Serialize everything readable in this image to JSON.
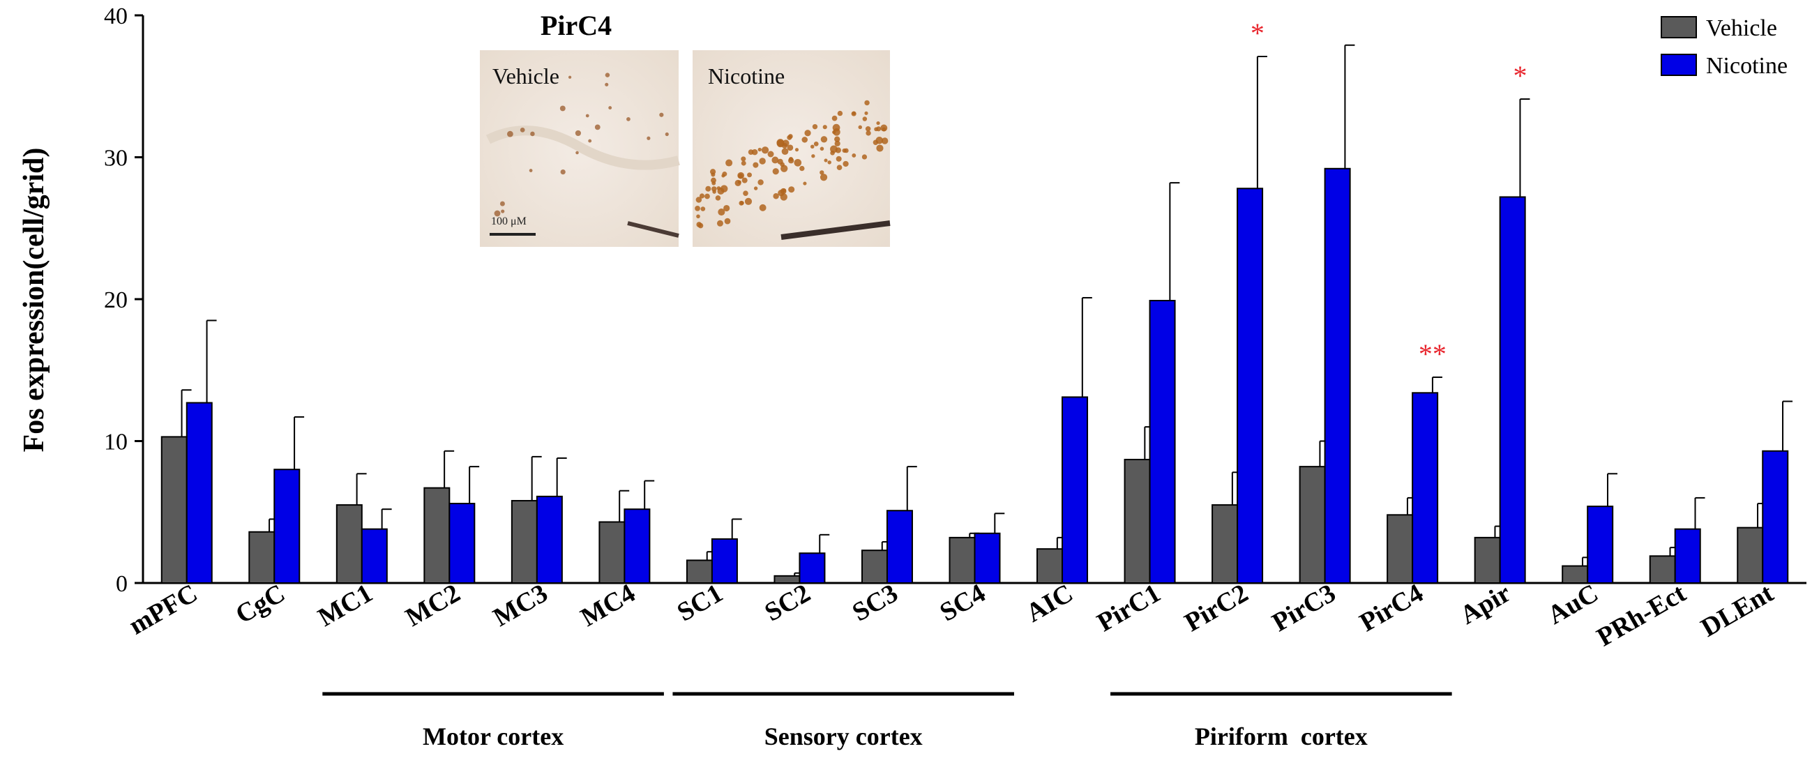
{
  "chart_data": {
    "type": "bar",
    "ylabel": "Fos expression(cell/grid)",
    "xlabel": "",
    "ylim": [
      0,
      40
    ],
    "yticks": [
      0,
      10,
      20,
      30,
      40
    ],
    "grid": false,
    "legend_position": "top-right",
    "categories": [
      "mPFC",
      "CgC",
      "MC1",
      "MC2",
      "MC3",
      "MC4",
      "SC1",
      "SC2",
      "SC3",
      "SC4",
      "AIC",
      "PirC1",
      "PirC2",
      "PirC3",
      "PirC4",
      "Apir",
      "AuC",
      "PRh-Ect",
      "DLEnt"
    ],
    "series": [
      {
        "name": "Vehicle",
        "color": "#5a5a5a",
        "values": [
          10.3,
          3.6,
          5.5,
          6.7,
          5.8,
          4.3,
          1.6,
          0.5,
          2.3,
          3.2,
          2.4,
          8.7,
          5.5,
          8.2,
          4.8,
          3.2,
          1.2,
          1.9,
          3.9
        ],
        "errors": [
          3.3,
          0.9,
          2.2,
          2.6,
          3.1,
          2.2,
          0.6,
          0.2,
          0.6,
          0.3,
          0.8,
          2.3,
          2.3,
          1.8,
          1.2,
          0.8,
          0.6,
          0.6,
          1.7
        ]
      },
      {
        "name": "Nicotine",
        "color": "#0000e6",
        "values": [
          12.7,
          8.0,
          3.8,
          5.6,
          6.1,
          5.2,
          3.1,
          2.1,
          5.1,
          3.5,
          13.1,
          19.9,
          27.8,
          29.2,
          13.4,
          27.2,
          5.4,
          3.8,
          9.3
        ],
        "errors": [
          5.8,
          3.7,
          1.4,
          2.6,
          2.7,
          2.0,
          1.4,
          1.3,
          3.1,
          1.4,
          7.0,
          8.3,
          9.3,
          8.7,
          1.1,
          6.9,
          2.3,
          2.2,
          3.5
        ]
      }
    ],
    "annotations": [
      {
        "category": "PirC2",
        "series": "Nicotine",
        "text": "*",
        "color": "#e8242c"
      },
      {
        "category": "PirC4",
        "series": "Nicotine",
        "text": "**",
        "color": "#e8242c"
      },
      {
        "category": "Apir",
        "series": "Nicotine",
        "text": "*",
        "color": "#e8242c"
      }
    ],
    "groups": [
      {
        "label": "Motor cortex",
        "from": "MC1",
        "to": "MC4"
      },
      {
        "label": "Sensory cortex",
        "from": "SC1",
        "to": "SC4"
      },
      {
        "label": "Piriform  cortex",
        "from": "PirC1",
        "to": "PirC4"
      }
    ]
  },
  "inset": {
    "title": "PirC4",
    "panels": [
      "Vehicle",
      "Nicotine"
    ],
    "scale_bar_label": "100 μM"
  }
}
